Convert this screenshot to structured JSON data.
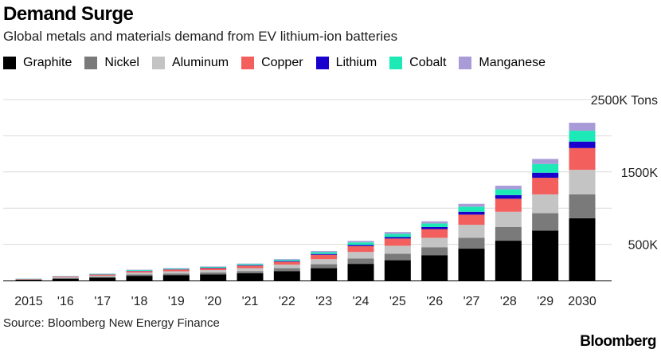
{
  "header": {
    "title": "Demand Surge",
    "subtitle": "Global metals and materials demand from EV lithium-ion batteries"
  },
  "source": "Source: Bloomberg New Energy Finance",
  "logo": "Bloomberg",
  "colors": {
    "Graphite": "#000000",
    "Nickel": "#7a7a7a",
    "Aluminum": "#c4c4c4",
    "Copper": "#f25f5c",
    "Lithium": "#1a00cc",
    "Cobalt": "#1de9b6",
    "Manganese": "#a99bd8"
  },
  "chart_data": {
    "type": "bar",
    "stacked": true,
    "title": "Demand Surge",
    "subtitle": "Global metals and materials demand from EV lithium-ion batteries",
    "ylabel": "",
    "unit_label": "Tons",
    "ylim": [
      0,
      2500000
    ],
    "y_tick_labels": [
      "2500K Tons",
      "1500K",
      "500K"
    ],
    "y_tick_values": [
      2500000,
      1500000,
      500000
    ],
    "grid": true,
    "legend_position": "top",
    "categories": [
      "2015",
      "'16",
      "'17",
      "'18",
      "'19",
      "'20",
      "'21",
      "'22",
      "'23",
      "'24",
      "'25",
      "'26",
      "'27",
      "'28",
      "'29",
      "2030"
    ],
    "series": [
      {
        "name": "Graphite",
        "values": [
          10000,
          25000,
          40000,
          65000,
          75000,
          85000,
          100000,
          130000,
          170000,
          230000,
          280000,
          350000,
          440000,
          550000,
          690000,
          860000
        ]
      },
      {
        "name": "Nickel",
        "values": [
          3000,
          8000,
          12000,
          20000,
          22000,
          25000,
          30000,
          40000,
          55000,
          75000,
          90000,
          110000,
          150000,
          190000,
          240000,
          330000
        ]
      },
      {
        "name": "Aluminum",
        "values": [
          5000,
          10000,
          15000,
          25000,
          30000,
          33000,
          40000,
          50000,
          70000,
          90000,
          110000,
          130000,
          180000,
          210000,
          260000,
          340000
        ]
      },
      {
        "name": "Copper",
        "values": [
          4000,
          10000,
          15000,
          20000,
          25000,
          28000,
          35000,
          40000,
          60000,
          80000,
          100000,
          120000,
          140000,
          180000,
          230000,
          300000
        ]
      },
      {
        "name": "Lithium",
        "values": [
          1000,
          2000,
          3000,
          4000,
          5000,
          5000,
          7000,
          9000,
          12000,
          17000,
          20000,
          28000,
          40000,
          50000,
          70000,
          90000
        ]
      },
      {
        "name": "Cobalt",
        "values": [
          2000,
          4000,
          7000,
          10000,
          10000,
          12000,
          14000,
          16000,
          25000,
          35000,
          45000,
          50000,
          70000,
          80000,
          120000,
          150000
        ]
      },
      {
        "name": "Manganese",
        "values": [
          1000,
          2000,
          3000,
          5000,
          5000,
          6000,
          8000,
          10000,
          15000,
          20000,
          25000,
          30000,
          40000,
          50000,
          70000,
          110000
        ]
      }
    ]
  }
}
